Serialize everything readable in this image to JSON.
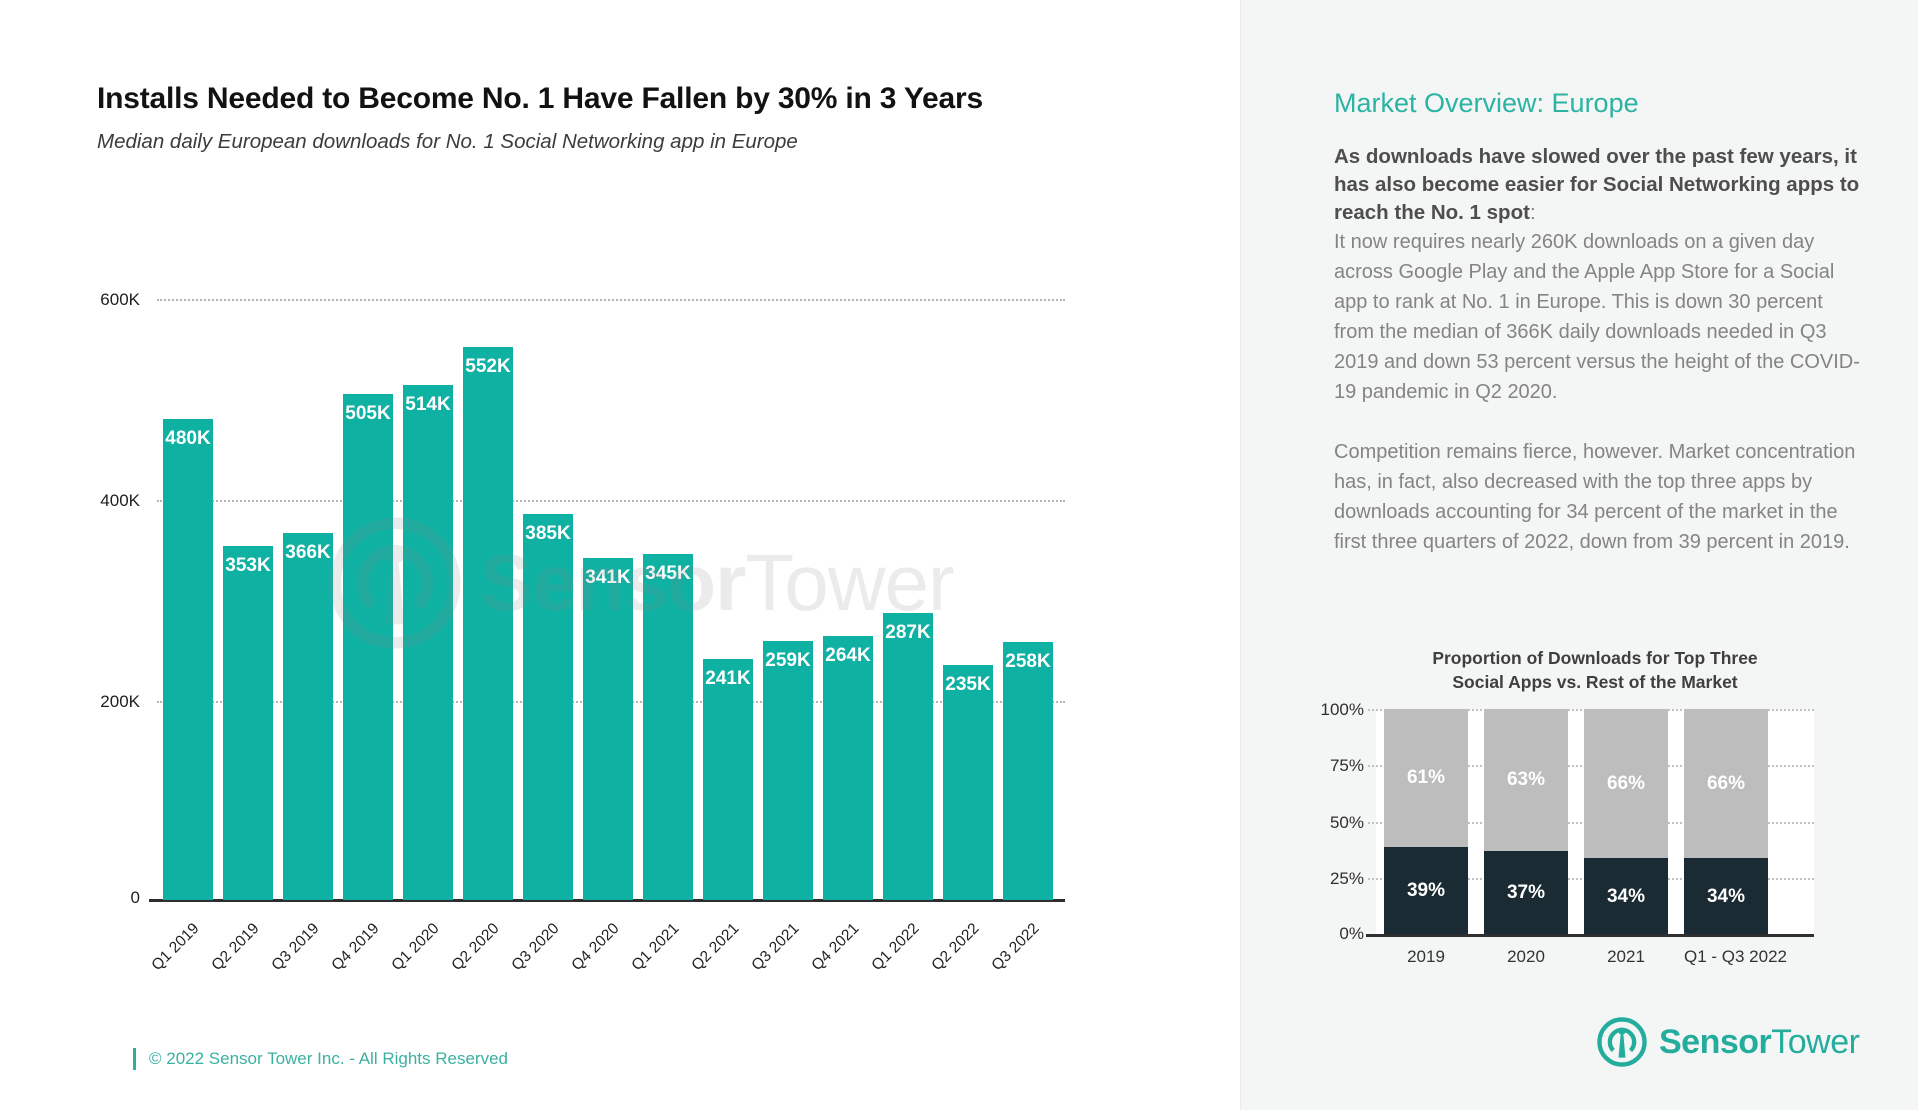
{
  "header": {
    "title": "Installs Needed to Become No. 1 Have Fallen by 30% in 3 Years",
    "subtitle": "Median daily European downloads for No. 1 Social Networking app in Europe"
  },
  "watermark": {
    "brand_bold": "Sensor",
    "brand_light": "Tower"
  },
  "footer": {
    "copyright": "© 2022 Sensor Tower Inc. - All Rights Reserved"
  },
  "right_panel": {
    "heading": "Market Overview: Europe",
    "paragraph1_bold": "As downloads have slowed over the past few years, it has also become easier for Social Networking apps to reach the No. 1 spot",
    "paragraph1_bold_suffix": ":",
    "paragraph1": "It now requires nearly 260K downloads on a given day across Google Play and the Apple App Store for a Social app to rank at No. 1 in Europe. This is down 30 percent from the median of 366K daily downloads needed in Q3 2019 and down 53 percent versus the height of the COVID-19 pandemic in Q2 2020.",
    "paragraph2": "Competition remains fierce, however. Market concentration has, in fact, also decreased with the top three apps by downloads accounting for 34 percent of the market in the first three quarters of 2022, down from 39 percent in 2019.",
    "mini_title_line1": "Proportion of Downloads for Top Three",
    "mini_title_line2": "Social Apps vs. Rest of the Market",
    "logo_bold": "Sensor",
    "logo_light": "Tower"
  },
  "chart_data": [
    {
      "type": "bar",
      "title": "Installs Needed to Become No. 1 Have Fallen by 30% in 3 Years",
      "subtitle": "Median daily European downloads for No. 1 Social Networking app in Europe",
      "categories": [
        "Q1 2019",
        "Q2 2019",
        "Q3 2019",
        "Q4 2019",
        "Q1 2020",
        "Q2 2020",
        "Q3 2020",
        "Q4 2020",
        "Q1 2021",
        "Q2 2021",
        "Q3 2021",
        "Q4 2021",
        "Q1 2022",
        "Q2 2022",
        "Q3 2022"
      ],
      "values": [
        480,
        353,
        366,
        505,
        514,
        552,
        385,
        341,
        345,
        241,
        259,
        264,
        287,
        235,
        258
      ],
      "labels": [
        "480K",
        "353K",
        "366K",
        "505K",
        "514K",
        "552K",
        "385K",
        "341K",
        "345K",
        "241K",
        "259K",
        "264K",
        "287K",
        "235K",
        "258K"
      ],
      "unit": "K downloads",
      "ylim": [
        0,
        600
      ],
      "yticks": [
        "600K",
        "400K",
        "200K",
        "0"
      ],
      "grid": "dotted-horizontal",
      "bar_color": "#0FB1A3",
      "legend": "none"
    },
    {
      "type": "bar",
      "subtype": "stacked-percent",
      "title": "Proportion of Downloads for Top Three Social Apps vs. Rest of the Market",
      "categories": [
        "2019",
        "2020",
        "2021",
        "Q1 - Q3 2022"
      ],
      "series": [
        {
          "name": "Top three social apps",
          "values": [
            39,
            37,
            34,
            34
          ],
          "labels": [
            "39%",
            "37%",
            "34%",
            "34%"
          ],
          "color": "#1B2B33"
        },
        {
          "name": "Rest of the market",
          "values": [
            61,
            63,
            66,
            66
          ],
          "labels": [
            "61%",
            "63%",
            "66%",
            "66%"
          ],
          "color": "#BDBDBD"
        }
      ],
      "ylim": [
        0,
        100
      ],
      "yticks": [
        "100%",
        "75%",
        "50%",
        "25%",
        "0%"
      ],
      "grid": "dotted-horizontal",
      "legend": "none"
    }
  ]
}
